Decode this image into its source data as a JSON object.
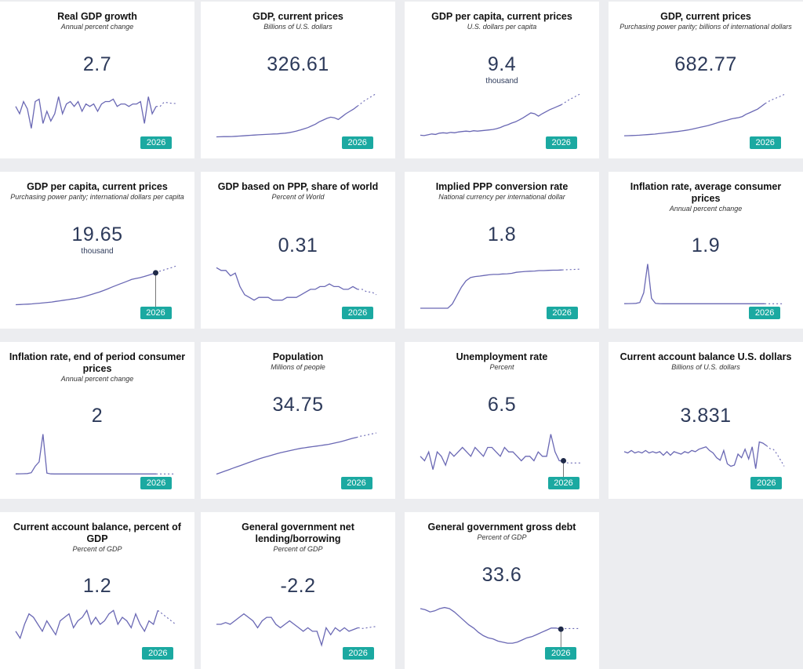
{
  "colors": {
    "line": "#6a68b4",
    "badge": "#1ba9a1",
    "marker": "#1f2a48",
    "value": "#2d3a5a"
  },
  "year": "2026",
  "cards": [
    {
      "title": "Real GDP growth",
      "subtitle": "Annual percent change",
      "value": "2.7",
      "unit": "",
      "marker": false,
      "ylim": [
        -12,
        8
      ],
      "series": [
        1,
        -2,
        3,
        0,
        -8,
        3,
        4,
        -6,
        -1,
        -5,
        -2,
        5,
        -2,
        2,
        3,
        1,
        3,
        -1,
        2,
        1,
        2,
        -1,
        2,
        3,
        3,
        4,
        1,
        2,
        2,
        1,
        2,
        2,
        3,
        -6,
        5,
        -2,
        1,
        1,
        2.7,
        2.5,
        2.3,
        2.2
      ]
    },
    {
      "title": "GDP, current prices",
      "subtitle": "Billions of U.S. dollars",
      "value": "326.61",
      "unit": "",
      "marker": false,
      "ylim": [
        0,
        420
      ],
      "series": [
        10,
        11,
        12,
        12,
        13,
        15,
        17,
        19,
        22,
        24,
        26,
        28,
        30,
        31,
        33,
        35,
        36,
        39,
        42,
        46,
        52,
        60,
        70,
        80,
        90,
        105,
        120,
        140,
        155,
        170,
        180,
        175,
        160,
        185,
        210,
        230,
        250,
        275,
        300,
        326,
        345,
        365,
        385
      ]
    },
    {
      "title": "GDP per capita, current prices",
      "subtitle": "U.S. dollars per capita",
      "value": "9.4",
      "unit": "thousand",
      "marker": false,
      "ylim": [
        0,
        12
      ],
      "series": [
        0.7,
        0.6,
        0.8,
        1.0,
        0.9,
        1.2,
        1.3,
        1.2,
        1.4,
        1.3,
        1.5,
        1.6,
        1.7,
        1.6,
        1.8,
        1.7,
        1.8,
        1.9,
        2.0,
        2.1,
        2.3,
        2.6,
        3.0,
        3.3,
        3.7,
        4.0,
        4.5,
        5.0,
        5.6,
        6.2,
        6.0,
        5.4,
        6.0,
        6.5,
        7.0,
        7.4,
        7.8,
        8.2,
        8.8,
        9.4,
        9.9,
        10.4,
        10.9
      ]
    },
    {
      "title": "GDP, current prices",
      "subtitle": "Purchasing power parity; billions of international dollars",
      "value": "682.77",
      "unit": "",
      "marker": false,
      "ylim": [
        0,
        860
      ],
      "series": [
        40,
        42,
        45,
        47,
        50,
        55,
        60,
        65,
        70,
        78,
        85,
        92,
        100,
        108,
        115,
        125,
        135,
        145,
        160,
        175,
        190,
        205,
        220,
        240,
        260,
        280,
        300,
        315,
        335,
        350,
        360,
        380,
        420,
        450,
        480,
        510,
        560,
        610,
        650,
        682,
        710,
        740,
        770
      ]
    },
    {
      "title": "GDP per capita, current prices",
      "subtitle": "Purchasing power parity; international dollars per capita",
      "value": "19.65",
      "unit": "thousand",
      "marker": true,
      "ylim": [
        0,
        25
      ],
      "series": [
        1.8,
        1.9,
        2.0,
        2.1,
        2.2,
        2.4,
        2.6,
        2.8,
        3.0,
        3.2,
        3.5,
        3.8,
        4.1,
        4.4,
        4.7,
        5.0,
        5.4,
        5.9,
        6.5,
        7.1,
        7.8,
        8.4,
        9.1,
        9.9,
        10.8,
        11.6,
        12.4,
        13.2,
        14.0,
        14.8,
        15.3,
        15.7,
        16.2,
        16.8,
        17.5,
        18.2,
        19.0,
        19.65,
        20.3,
        20.9,
        21.6
      ]
    },
    {
      "title": "GDP based on PPP, share of world",
      "subtitle": "Percent of World",
      "value": "0.31",
      "unit": "",
      "marker": false,
      "ylim": [
        0.24,
        0.42
      ],
      "series": [
        0.39,
        0.38,
        0.38,
        0.36,
        0.37,
        0.32,
        0.29,
        0.28,
        0.27,
        0.28,
        0.28,
        0.28,
        0.27,
        0.27,
        0.27,
        0.28,
        0.28,
        0.28,
        0.29,
        0.3,
        0.31,
        0.31,
        0.32,
        0.32,
        0.33,
        0.32,
        0.32,
        0.31,
        0.31,
        0.32,
        0.31,
        0.31,
        0.3,
        0.3,
        0.29
      ]
    },
    {
      "title": "Implied PPP conversion rate",
      "subtitle": "National currency per international dollar",
      "value": "1.8",
      "unit": "",
      "marker": false,
      "ylim": [
        0,
        2.3
      ],
      "series": [
        0,
        0,
        0,
        0,
        0,
        0,
        0,
        0.2,
        0.6,
        1.0,
        1.3,
        1.45,
        1.5,
        1.52,
        1.55,
        1.58,
        1.6,
        1.6,
        1.62,
        1.63,
        1.65,
        1.7,
        1.72,
        1.74,
        1.75,
        1.76,
        1.78,
        1.78,
        1.79,
        1.8,
        1.8,
        1.81,
        1.82,
        1.83,
        1.84,
        1.85
      ]
    },
    {
      "title": "Inflation rate, average consumer prices",
      "subtitle": "Annual percent change",
      "value": "1.9",
      "unit": "",
      "marker": false,
      "ylim": [
        -200,
        2000
      ],
      "series": [
        5,
        8,
        12,
        20,
        60,
        500,
        1800,
        250,
        20,
        5,
        3,
        2,
        2,
        1,
        2,
        1,
        2,
        2,
        1,
        2,
        2,
        2,
        1,
        2,
        2,
        2,
        2,
        2,
        1,
        2,
        2,
        2,
        2,
        2,
        2,
        2,
        2,
        2,
        2,
        1.9,
        1.9,
        1.9
      ]
    },
    {
      "title": "Inflation rate, end of period consumer prices",
      "subtitle": "Annual percent change",
      "value": "2",
      "unit": "",
      "marker": false,
      "ylim": [
        -200,
        2000
      ],
      "series": [
        5,
        8,
        12,
        20,
        60,
        350,
        550,
        1800,
        40,
        5,
        3,
        2,
        2,
        1,
        2,
        1,
        2,
        2,
        1,
        2,
        2,
        2,
        1,
        2,
        2,
        2,
        2,
        2,
        1,
        2,
        2,
        2,
        2,
        2,
        2,
        2,
        2,
        2,
        2,
        2,
        2,
        2
      ]
    },
    {
      "title": "Population",
      "subtitle": "Millions of people",
      "value": "34.75",
      "unit": "",
      "marker": false,
      "ylim": [
        20,
        37
      ],
      "series": [
        21.5,
        22.0,
        22.5,
        23.0,
        23.5,
        24.0,
        24.5,
        25.0,
        25.5,
        26.0,
        26.5,
        27.0,
        27.4,
        27.8,
        28.2,
        28.6,
        29.0,
        29.3,
        29.6,
        29.9,
        30.2,
        30.5,
        30.7,
        30.9,
        31.1,
        31.3,
        31.5,
        31.7,
        31.9,
        32.2,
        32.5,
        32.8,
        33.2,
        33.6,
        34.0,
        34.3,
        34.75,
        35.0,
        35.3,
        35.6,
        35.9
      ]
    },
    {
      "title": "Unemployment rate",
      "subtitle": "Percent",
      "value": "6.5",
      "unit": "",
      "marker": true,
      "ylim": [
        3,
        14
      ],
      "series": [
        8,
        7,
        9,
        5,
        9,
        8,
        6,
        9,
        8,
        9,
        10,
        9,
        8,
        10,
        9,
        8,
        10,
        10,
        9,
        8,
        10,
        9,
        9,
        8,
        7,
        8,
        8,
        7,
        9,
        8,
        8,
        13,
        9,
        7,
        7,
        6.5,
        6.5,
        6.5,
        6.5
      ]
    },
    {
      "title": "Current account balance U.S. dollars",
      "subtitle": "Billions of U.S. dollars",
      "value": "3.831",
      "unit": "",
      "marker": false,
      "ylim": [
        -20,
        20
      ],
      "series": [
        2,
        1,
        3,
        1,
        2,
        1,
        3,
        1,
        2,
        1,
        2,
        -1,
        2,
        -1,
        2,
        1,
        0,
        2,
        1,
        3,
        2,
        4,
        5,
        6,
        3,
        1,
        -3,
        -5,
        3,
        -8,
        -10,
        -9,
        0,
        -3,
        4,
        -4,
        6,
        -12,
        10,
        9,
        7,
        4.5,
        3.831,
        0,
        -5,
        -10
      ]
    },
    {
      "title": "Current account balance, percent of GDP",
      "subtitle": "Percent of GDP",
      "value": "1.2",
      "unit": "",
      "marker": false,
      "ylim": [
        -8,
        6
      ],
      "series": [
        -3,
        -5,
        -1,
        2,
        1,
        -1,
        -3,
        0,
        -2,
        -4,
        0,
        1,
        2,
        -2,
        0,
        1,
        3,
        -1,
        1,
        -1,
        0,
        2,
        3,
        -1,
        1,
        0,
        -2,
        2,
        -1,
        -3,
        0,
        -1,
        3,
        2,
        1,
        0,
        -1
      ]
    },
    {
      "title": "General government net lending/borrowing",
      "subtitle": "Percent of GDP",
      "value": "-2.2",
      "unit": "",
      "marker": false,
      "ylim": [
        -8,
        6
      ],
      "series": [
        -1,
        -1,
        -0.5,
        -1,
        0,
        1,
        2,
        1,
        0,
        -2,
        0,
        1,
        1,
        -1,
        -2,
        -1,
        0,
        -1,
        -2,
        -3,
        -2,
        -3,
        -3,
        -7,
        -2,
        -4,
        -2,
        -3,
        -2,
        -3,
        -2.5,
        -2,
        -2.2,
        -2,
        -1.8,
        -1.6
      ]
    },
    {
      "title": "General government gross debt",
      "subtitle": "Percent of GDP",
      "value": "33.6",
      "unit": "",
      "marker": true,
      "ylim": [
        15,
        60
      ],
      "series": [
        52,
        51,
        49,
        50,
        52,
        53,
        52,
        49,
        45,
        41,
        37,
        34,
        30,
        27,
        25,
        24,
        22,
        21,
        20,
        20,
        21,
        23,
        25,
        26,
        28,
        30,
        32,
        34,
        34,
        33,
        33.6,
        33.6,
        33.6,
        33.6
      ]
    }
  ]
}
